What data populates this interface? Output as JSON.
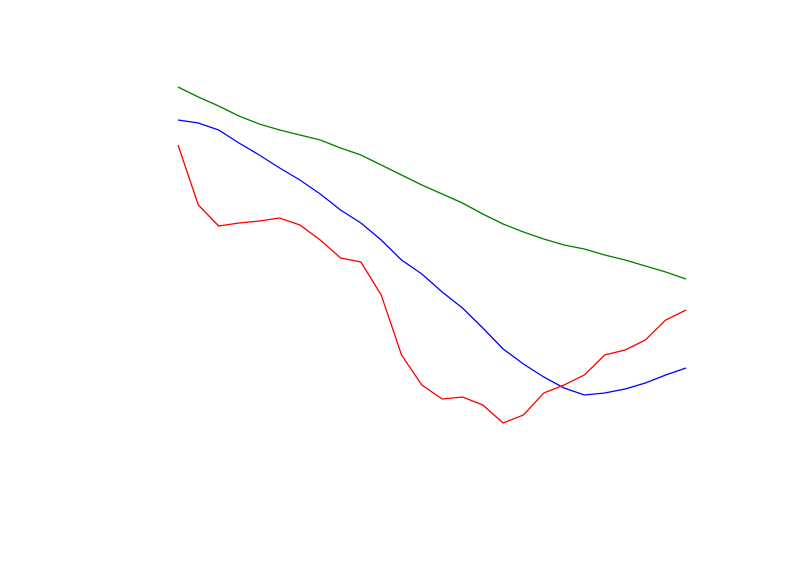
{
  "chart_data": {
    "type": "line",
    "x": [
      0,
      1,
      2,
      3,
      4,
      5,
      6,
      7,
      8,
      9,
      10,
      11,
      12,
      13,
      14,
      15,
      16,
      17,
      18,
      19,
      20,
      21,
      22,
      23,
      24,
      25
    ],
    "xlim": [
      0,
      25
    ],
    "ylim": [
      0,
      450
    ],
    "series": [
      {
        "color": "#008000",
        "values": [
          425,
          415,
          406,
          396,
          388,
          382,
          377,
          372,
          364,
          357,
          347,
          337,
          327,
          318,
          309,
          298,
          288,
          280,
          273,
          267,
          263,
          257,
          252,
          246,
          240,
          233
        ]
      },
      {
        "color": "#0000ff",
        "values": [
          392,
          389,
          382,
          369,
          357,
          344,
          332,
          318,
          302,
          289,
          272,
          252,
          238,
          220,
          204,
          184,
          163,
          148,
          135,
          124,
          117,
          119,
          123,
          129,
          137,
          144
        ]
      },
      {
        "color": "#ff0000",
        "values": [
          367,
          307,
          286,
          289,
          291,
          294,
          287,
          272,
          254,
          250,
          217,
          157,
          127,
          113,
          115,
          107,
          89,
          97,
          119,
          127,
          137,
          157,
          162,
          172,
          192,
          202
        ]
      }
    ]
  }
}
